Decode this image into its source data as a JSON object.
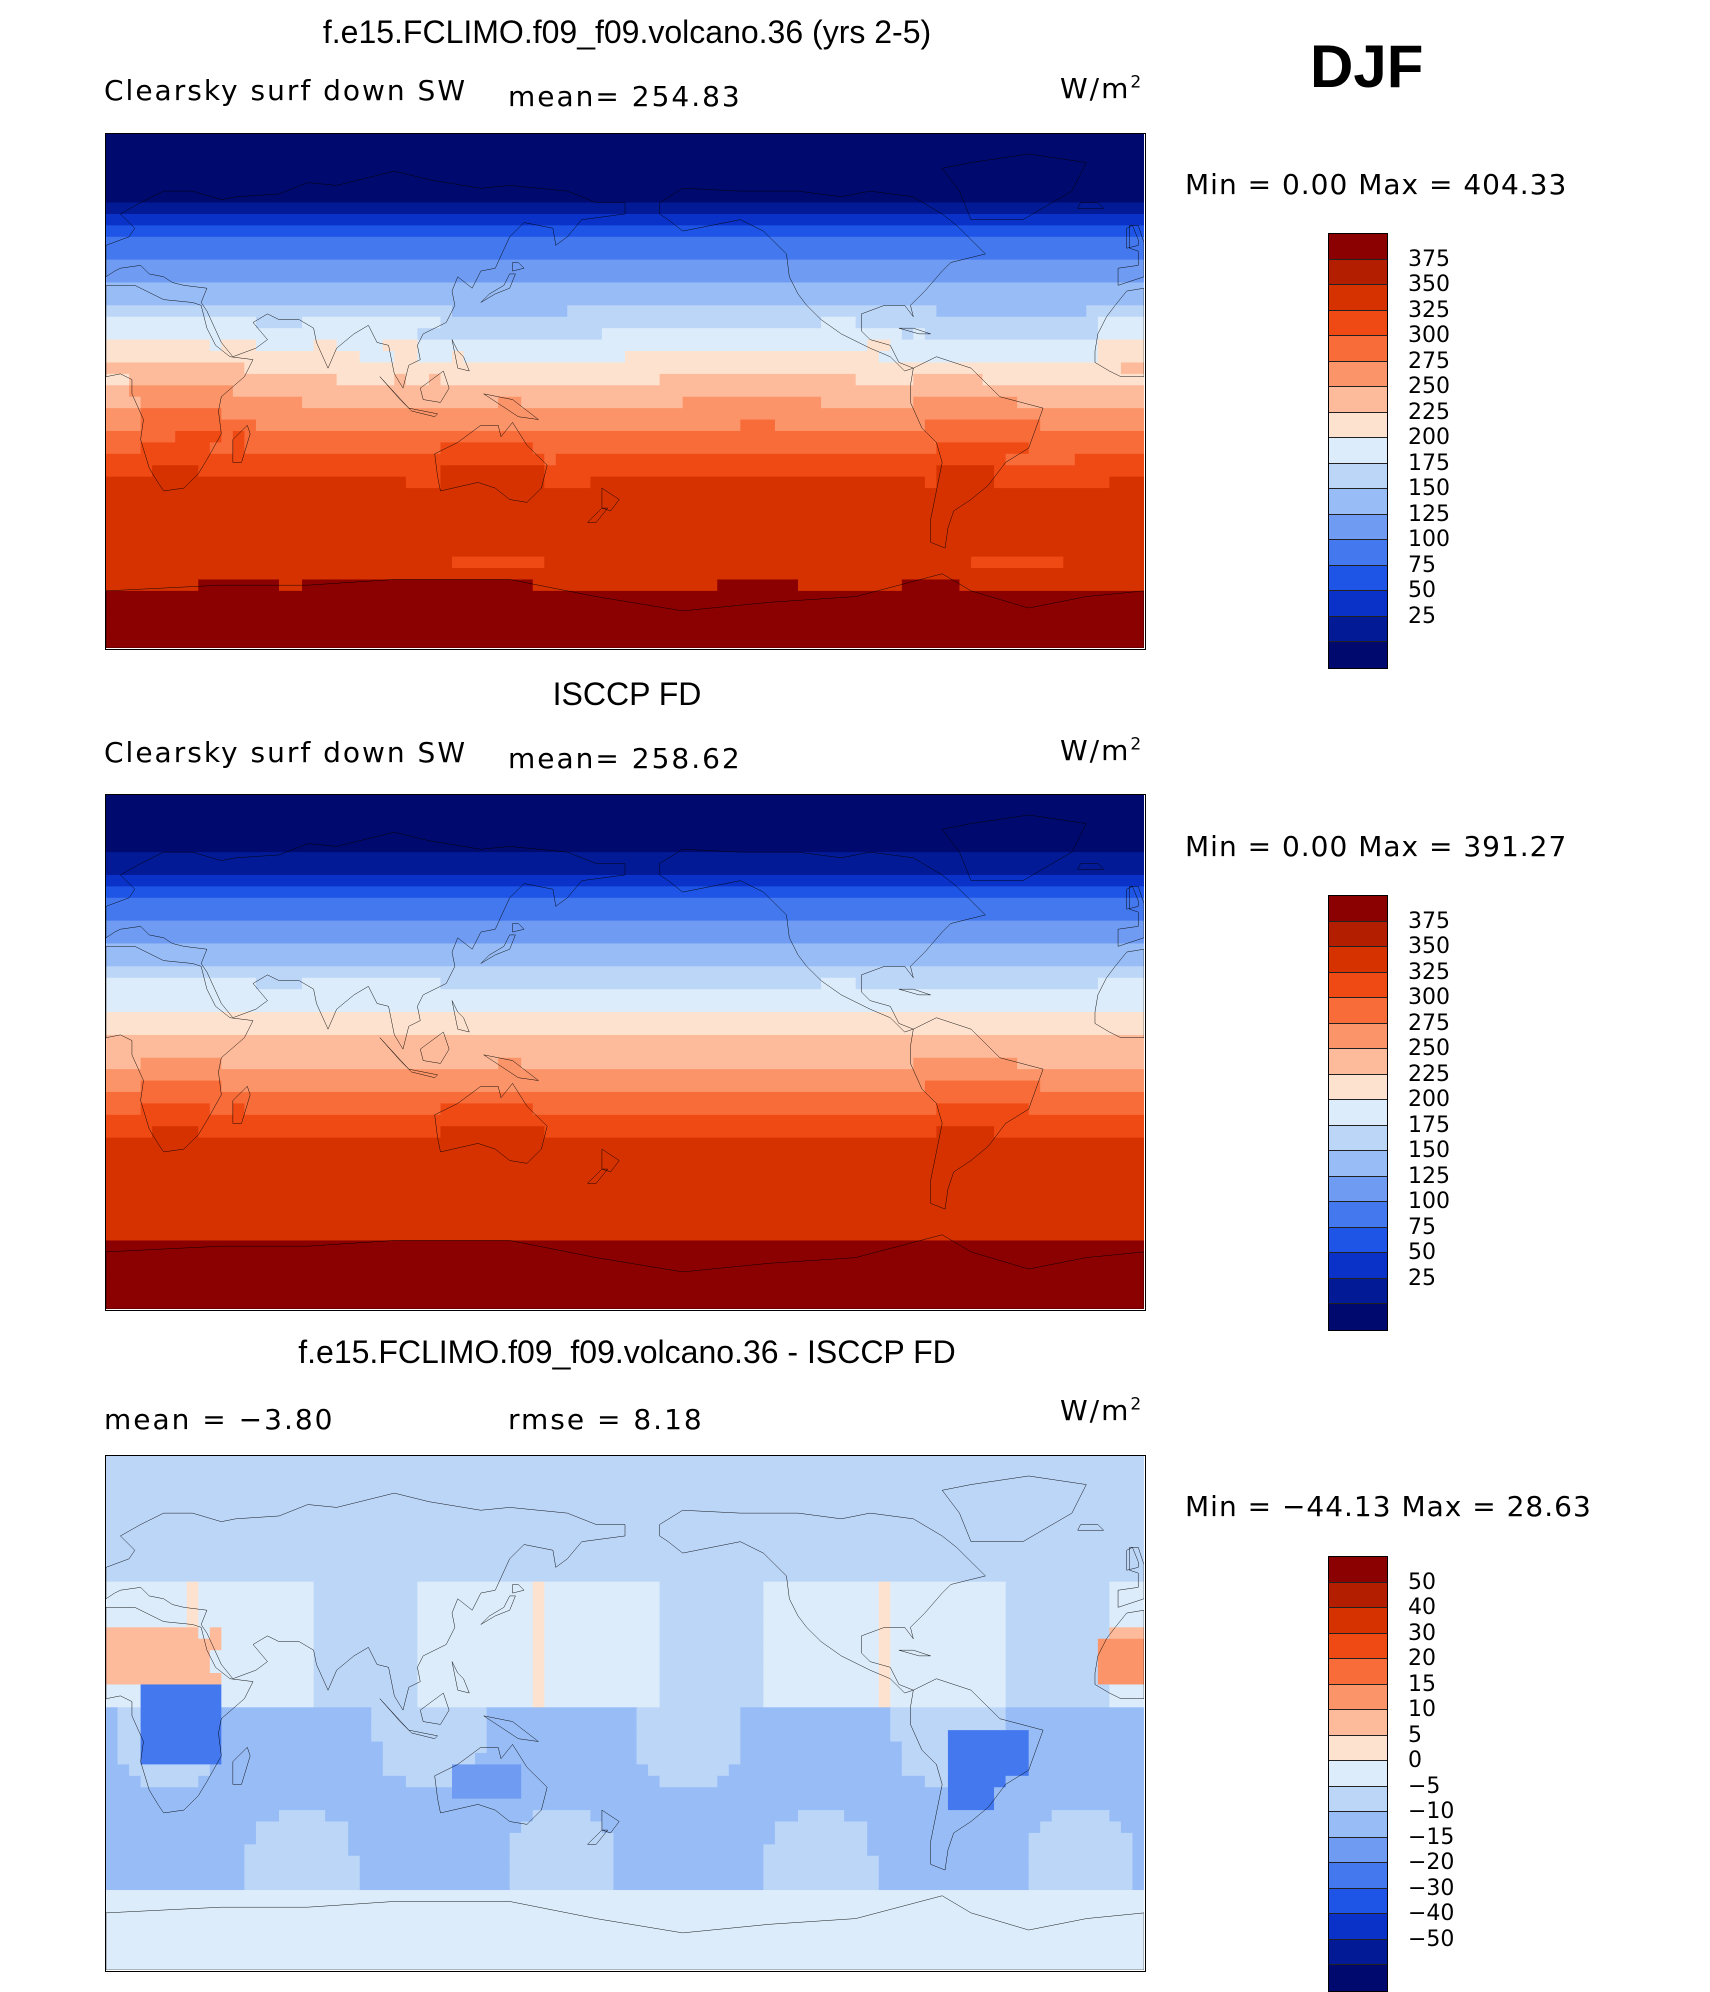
{
  "season": "DJF",
  "panels": [
    {
      "title": "f.e15.FCLIMO.f09_f09.volcano.36 (yrs 2-5)",
      "left_label": "Clearsky surf down SW",
      "stat_label": "mean= 254.83",
      "unit_base": "W/m",
      "unit_exp": "2",
      "range_text": "Min =    0.00 Max = 404.33",
      "field": "model_sw"
    },
    {
      "title": "ISCCP FD",
      "left_label": "Clearsky surf down SW",
      "stat_label": "mean= 258.62",
      "unit_base": "W/m",
      "unit_exp": "2",
      "range_text": "Min =    0.00 Max = 391.27",
      "field": "obs_sw"
    },
    {
      "title": "f.e15.FCLIMO.f09_f09.volcano.36 - ISCCP FD",
      "left_label": "mean =   −3.80",
      "stat_label": "rmse =    8.18",
      "unit_base": "W/m",
      "unit_exp": "2",
      "range_text": "Min = −44.13 Max =  28.63",
      "field": "diff_sw"
    }
  ],
  "colorbars": {
    "sw": {
      "levels": [
        "375",
        "350",
        "325",
        "300",
        "275",
        "250",
        "225",
        "200",
        "175",
        "150",
        "125",
        "100",
        "75",
        "50",
        "25"
      ],
      "colors": [
        "#8b0000",
        "#b41e00",
        "#d63200",
        "#f04a14",
        "#f86c3a",
        "#fb9468",
        "#fdbb9b",
        "#fde3cf",
        "#dcecfa",
        "#bcd6f8",
        "#98bdf6",
        "#6f9cf2",
        "#4478ee",
        "#1e55e6",
        "#0a32c8",
        "#021a96",
        "#000a6e"
      ]
    },
    "diff": {
      "levels": [
        "50",
        "40",
        "30",
        "20",
        "15",
        "10",
        "5",
        "0",
        "−5",
        "−10",
        "−15",
        "−20",
        "−30",
        "−40",
        "−50"
      ],
      "colors": [
        "#8b0000",
        "#b41e00",
        "#d63200",
        "#f04a14",
        "#f86c3a",
        "#fb9468",
        "#fdbb9b",
        "#fde3cf",
        "#dcecfa",
        "#bcd6f8",
        "#98bdf6",
        "#6f9cf2",
        "#4478ee",
        "#1e55e6",
        "#0a32c8",
        "#021a96",
        "#000a6e"
      ]
    }
  }
}
